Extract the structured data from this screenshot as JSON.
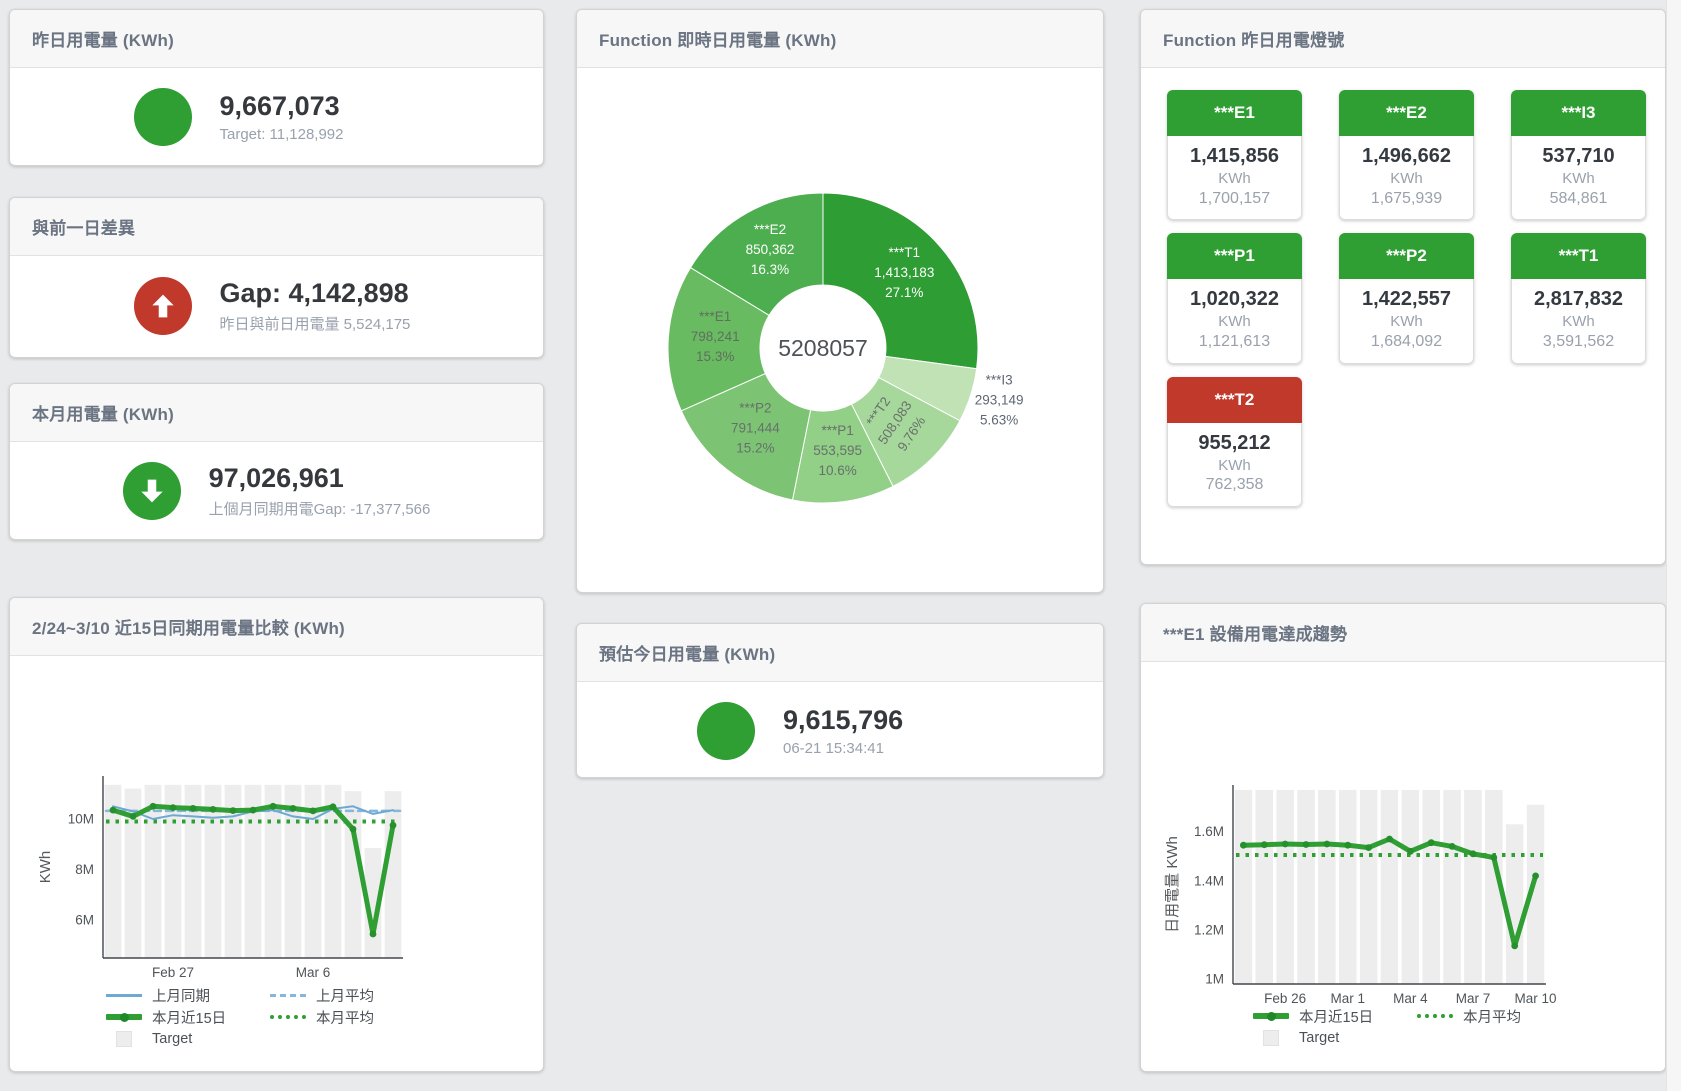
{
  "page": {
    "background": "#e9eaeb"
  },
  "colors": {
    "green": "#2f9e33",
    "red": "#c0392b",
    "blue_line": "#6da9d2",
    "blue_dash": "#85b6dd",
    "bar_gray": "#ededed",
    "title_gray": "#6b7482",
    "value_dark": "#35393d",
    "sub_gray": "#98a1ad"
  },
  "cards": {
    "yesterday": {
      "title": "昨日用電量 (KWh)",
      "value": "9,667,073",
      "subtitle": "Target: 11,128,992",
      "icon": "circle",
      "icon_color": "#2f9e33"
    },
    "prev_day_gap": {
      "title": "與前一日差異",
      "value": "Gap: 4,142,898",
      "subtitle": "昨日與前日用電量 5,524,175",
      "icon": "arrow-up",
      "icon_color": "#c0392b"
    },
    "month": {
      "title": "本月用電量 (KWh)",
      "value": "97,026,961",
      "subtitle": "上個月同期用電Gap: -17,377,566",
      "icon": "arrow-down",
      "icon_color": "#2f9e33"
    },
    "estimate": {
      "title": "預估今日用電量 (KWh)",
      "value": "9,615,796",
      "subtitle": "06-21 15:34:41",
      "icon": "circle",
      "icon_color": "#2f9e33"
    },
    "realtime": {
      "title": "Function 即時日用電量 (KWh)"
    },
    "lamp": {
      "title": "Function 昨日用電燈號",
      "tiles": [
        {
          "name": "***E1",
          "value": "1,415,856",
          "unit": "KWh",
          "target": "1,700,157",
          "status": "ok"
        },
        {
          "name": "***E2",
          "value": "1,496,662",
          "unit": "KWh",
          "target": "1,675,939",
          "status": "ok"
        },
        {
          "name": "***I3",
          "value": "537,710",
          "unit": "KWh",
          "target": "584,861",
          "status": "ok"
        },
        {
          "name": "***P1",
          "value": "1,020,322",
          "unit": "KWh",
          "target": "1,121,613",
          "status": "ok"
        },
        {
          "name": "***P2",
          "value": "1,422,557",
          "unit": "KWh",
          "target": "1,684,092",
          "status": "ok"
        },
        {
          "name": "***T1",
          "value": "2,817,832",
          "unit": "KWh",
          "target": "3,591,562",
          "status": "ok"
        },
        {
          "name": "***T2",
          "value": "955,212",
          "unit": "KWh",
          "target": "762,358",
          "status": "alert"
        }
      ]
    },
    "compare": {
      "title": "2/24~3/10 近15日同期用電量比較 (KWh)"
    },
    "trend": {
      "title": "***E1 設備用電達成趨勢"
    }
  },
  "chart_data": [
    {
      "id": "realtime_donut",
      "type": "pie",
      "title": "Function 即時日用電量 (KWh)",
      "center_total": "5208057",
      "slices": [
        {
          "name": "***T1",
          "value": "1,413,183",
          "pct": 27.1,
          "pct_label": "27.1%",
          "color": "#2e9d33",
          "label": "inside",
          "label_color": "#ffffff"
        },
        {
          "name": "***I3",
          "value": "293,149",
          "pct": 5.63,
          "pct_label": "5.63%",
          "color": "#c0e2b5",
          "label": "outside",
          "label_color": "#5f6772"
        },
        {
          "name": "***T2",
          "value": "508,083",
          "pct": 9.76,
          "pct_label": "9.76%",
          "color": "#a7d89b",
          "label": "inside",
          "label_color": "#67706b",
          "rotate": -56
        },
        {
          "name": "***P1",
          "value": "553,595",
          "pct": 10.6,
          "pct_label": "10.6%",
          "color": "#92cf87",
          "label": "inside",
          "label_color": "#67706b"
        },
        {
          "name": "***P2",
          "value": "791,444",
          "pct": 15.2,
          "pct_label": "15.2%",
          "color": "#7cc473",
          "label": "inside",
          "label_color": "#67706b"
        },
        {
          "name": "***E1",
          "value": "798,241",
          "pct": 15.3,
          "pct_label": "15.3%",
          "color": "#69bb61",
          "label": "inside",
          "label_color": "#5f6f5f"
        },
        {
          "name": "***E2",
          "value": "850,362",
          "pct": 16.3,
          "pct_label": "16.3%",
          "color": "#4cae4f",
          "label": "inside",
          "label_color": "#ffffff"
        }
      ]
    },
    {
      "id": "compare_15d",
      "type": "line",
      "title": "2/24~3/10 近15日同期用電量比較 (KWh)",
      "unit": "million KWh",
      "ylabel": "KWh",
      "ylim": [
        4.5,
        11.7
      ],
      "yticks": [
        {
          "v": 6,
          "label": "6M"
        },
        {
          "v": 8,
          "label": "8M"
        },
        {
          "v": 10,
          "label": "10M"
        }
      ],
      "categories": [
        "Feb 24",
        "Feb 25",
        "Feb 26",
        "Feb 27",
        "Feb 28",
        "Mar 1",
        "Mar 2",
        "Mar 3",
        "Mar 4",
        "Mar 5",
        "Mar 6",
        "Mar 7",
        "Mar 8",
        "Mar 9",
        "Mar 10"
      ],
      "xtick_indices": [
        3,
        10
      ],
      "series": [
        {
          "name": "Target",
          "type": "bar",
          "color": "#ededed",
          "values": [
            11.35,
            11.2,
            11.35,
            11.35,
            11.35,
            11.35,
            11.35,
            11.35,
            11.35,
            11.35,
            11.35,
            11.35,
            11.1,
            8.85,
            11.1
          ]
        },
        {
          "name": "上月平均",
          "type": "line",
          "style": "dashed",
          "color": "#85b6dd",
          "width": 2.5,
          "value": 10.32
        },
        {
          "name": "本月平均",
          "type": "line",
          "style": "dotted",
          "color": "#2f9e33",
          "width": 4,
          "value": 9.9
        },
        {
          "name": "上月同期",
          "type": "line",
          "style": "solid",
          "color": "#6da9d2",
          "width": 2,
          "values": [
            10.5,
            10.3,
            10.0,
            10.15,
            10.1,
            10.05,
            10.1,
            10.3,
            10.35,
            10.1,
            10.0,
            10.4,
            10.5,
            10.2,
            10.35
          ]
        },
        {
          "name": "本月近15日",
          "type": "line",
          "style": "solid",
          "color": "#2f9e33",
          "width": 5,
          "markers": true,
          "marker_color": "#26902c",
          "values": [
            10.35,
            10.1,
            10.5,
            10.45,
            10.42,
            10.38,
            10.33,
            10.35,
            10.5,
            10.42,
            10.32,
            10.48,
            9.6,
            5.45,
            9.75
          ]
        }
      ],
      "legend": [
        "上月同期",
        "上月平均",
        "本月近15日",
        "本月平均",
        "Target"
      ]
    },
    {
      "id": "e1_trend",
      "type": "line",
      "title": "***E1 設備用電達成趨勢",
      "unit": "million KWh",
      "ylabel": "日用電量 KWh",
      "ylim": [
        0.98,
        1.79
      ],
      "yticks": [
        {
          "v": 1,
          "label": "1M"
        },
        {
          "v": 1.2,
          "label": "1.2M"
        },
        {
          "v": 1.4,
          "label": "1.4M"
        },
        {
          "v": 1.6,
          "label": "1.6M"
        }
      ],
      "categories": [
        "Feb 24",
        "Feb 25",
        "Feb 26",
        "Feb 27",
        "Feb 28",
        "Mar 1",
        "Mar 2",
        "Mar 3",
        "Mar 4",
        "Mar 5",
        "Mar 6",
        "Mar 7",
        "Mar 8",
        "Mar 9",
        "Mar 10"
      ],
      "xtick_indices": [
        2,
        5,
        8,
        11,
        14
      ],
      "series": [
        {
          "name": "Target",
          "type": "bar",
          "color": "#ededed",
          "values": [
            1.77,
            1.77,
            1.77,
            1.77,
            1.77,
            1.77,
            1.77,
            1.77,
            1.77,
            1.77,
            1.77,
            1.77,
            1.77,
            1.63,
            1.71
          ]
        },
        {
          "name": "本月平均",
          "type": "line",
          "style": "dotted",
          "color": "#2f9e33",
          "width": 4,
          "value": 1.505
        },
        {
          "name": "本月近15日",
          "type": "line",
          "style": "solid",
          "color": "#2f9e33",
          "width": 5,
          "markers": true,
          "marker_color": "#26902c",
          "values": [
            1.545,
            1.547,
            1.55,
            1.548,
            1.55,
            1.545,
            1.535,
            1.57,
            1.52,
            1.555,
            1.54,
            1.51,
            1.495,
            1.135,
            1.42
          ]
        }
      ],
      "legend": [
        "本月近15日",
        "本月平均",
        "Target"
      ]
    }
  ]
}
